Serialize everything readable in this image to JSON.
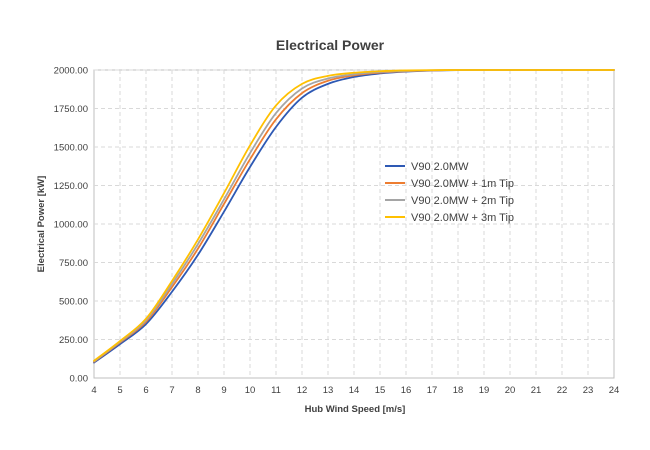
{
  "chart_data": {
    "type": "line",
    "title": "Electrical Power",
    "xlabel": "Hub Wind Speed [m/s]",
    "ylabel": "Electrical Power [kW]",
    "xlim": [
      4,
      24
    ],
    "ylim": [
      0,
      2000
    ],
    "grid": true,
    "legend_position": "center-right",
    "x_ticks": [
      4,
      5,
      6,
      7,
      8,
      9,
      10,
      11,
      12,
      13,
      14,
      15,
      16,
      17,
      18,
      19,
      20,
      21,
      22,
      23,
      24
    ],
    "x_tick_labels": [
      "4",
      "5",
      "6",
      "7",
      "8",
      "9",
      "10",
      "11",
      "12",
      "13",
      "14",
      "15",
      "16",
      "17",
      "18",
      "19",
      "20",
      "21",
      "22",
      "23",
      "24"
    ],
    "y_ticks": [
      0,
      250,
      500,
      750,
      1000,
      1250,
      1500,
      1750,
      2000
    ],
    "y_tick_labels": [
      "0.00",
      "250.00",
      "500.00",
      "750.00",
      "1000.00",
      "1250.00",
      "1500.00",
      "1750.00",
      "2000.00"
    ],
    "x": [
      4,
      5,
      6,
      7,
      8,
      9,
      10,
      11,
      12,
      13,
      14,
      15,
      16,
      17,
      18,
      19,
      20,
      21,
      22,
      23,
      24
    ],
    "series": [
      {
        "name": "V90 2.0MW",
        "color": "#2e59b4",
        "values": [
          100,
          220,
          350,
          560,
          800,
          1080,
          1370,
          1630,
          1820,
          1910,
          1955,
          1978,
          1990,
          1996,
          1999,
          2000,
          2000,
          2000,
          2000,
          2000,
          2000
        ]
      },
      {
        "name": "V90 2.0MW + 1m Tip",
        "color": "#ed7d31",
        "values": [
          105,
          230,
          365,
          590,
          840,
          1130,
          1420,
          1680,
          1850,
          1930,
          1965,
          1983,
          1992,
          1997,
          2000,
          2000,
          2000,
          2000,
          2000,
          2000,
          2000
        ]
      },
      {
        "name": "V90 2.0MW + 2m Tip",
        "color": "#a5a5a5",
        "values": [
          108,
          235,
          375,
          610,
          870,
          1160,
          1460,
          1720,
          1880,
          1945,
          1972,
          1987,
          1994,
          1998,
          2000,
          2000,
          2000,
          2000,
          2000,
          2000,
          2000
        ]
      },
      {
        "name": "V90 2.0MW + 3m Tip",
        "color": "#ffc000",
        "values": [
          112,
          240,
          385,
          630,
          900,
          1200,
          1510,
          1770,
          1910,
          1962,
          1982,
          1992,
          1997,
          1999,
          2000,
          2000,
          2000,
          2000,
          2000,
          2000,
          2000
        ]
      }
    ]
  }
}
